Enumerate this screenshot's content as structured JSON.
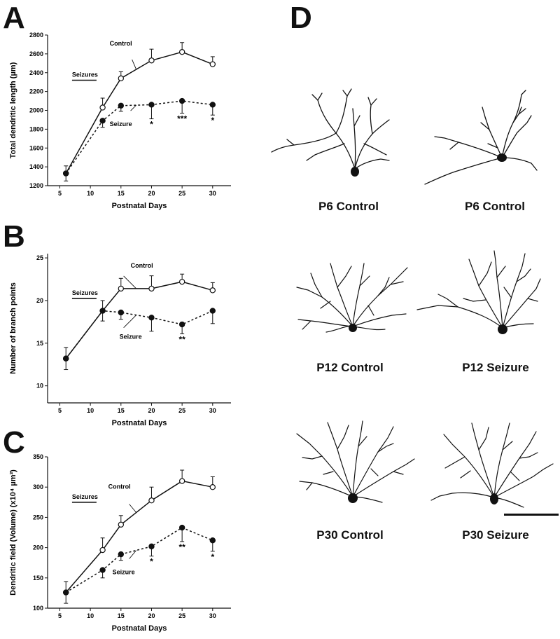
{
  "panels": {
    "a": "A",
    "b": "B",
    "c": "C",
    "d": "D"
  },
  "chart_data": [
    {
      "type": "line",
      "panel": "A",
      "xlabel": "Postnatal Days",
      "ylabel": "Total dendritic length (µm)",
      "x_ticks": [
        5,
        10,
        15,
        20,
        25,
        30
      ],
      "y_ticks": [
        1200,
        1400,
        1600,
        1800,
        2000,
        2200,
        2400,
        2600,
        2800
      ],
      "xlim": [
        3,
        33
      ],
      "ylim": [
        1200,
        2800
      ],
      "seizure_label": "Seizures",
      "seizure_period": [
        7,
        11
      ],
      "series": [
        {
          "name": "Control",
          "line": "solid",
          "marker": "open-circle",
          "x": [
            6,
            12,
            15,
            20,
            25,
            30
          ],
          "y": [
            1330,
            2030,
            2340,
            2530,
            2620,
            2490
          ],
          "err": [
            80,
            100,
            70,
            120,
            100,
            80
          ]
        },
        {
          "name": "Seizure",
          "line": "dashed",
          "marker": "filled-circle",
          "x": [
            6,
            12,
            15,
            20,
            25,
            30
          ],
          "y": [
            1330,
            1890,
            2050,
            2060,
            2100,
            2060
          ],
          "err": [
            80,
            70,
            60,
            150,
            130,
            110
          ]
        }
      ],
      "significance": [
        {
          "x": 20,
          "label": "*"
        },
        {
          "x": 25,
          "label": "***"
        },
        {
          "x": 30,
          "label": "*"
        }
      ]
    },
    {
      "type": "line",
      "panel": "B",
      "xlabel": "Postnatal Days",
      "ylabel": "Number of branch points",
      "x_ticks": [
        5,
        10,
        15,
        20,
        25,
        30
      ],
      "y_ticks": [
        10,
        15,
        20,
        25
      ],
      "xlim": [
        3,
        33
      ],
      "ylim": [
        8,
        25.5
      ],
      "seizure_label": "Seizures",
      "seizure_period": [
        7,
        11
      ],
      "series": [
        {
          "name": "Control",
          "line": "solid",
          "marker": "open-circle",
          "x": [
            6,
            12,
            15,
            20,
            25,
            30
          ],
          "y": [
            13.2,
            18.8,
            21.4,
            21.4,
            22.2,
            21.2
          ],
          "err": [
            1.3,
            1.2,
            1.2,
            1.5,
            0.9,
            0.9
          ]
        },
        {
          "name": "Seizure",
          "line": "dashed",
          "marker": "filled-circle",
          "x": [
            6,
            12,
            15,
            20,
            25,
            30
          ],
          "y": [
            13.2,
            18.8,
            18.6,
            18.0,
            17.2,
            18.8
          ],
          "err": [
            1.3,
            1.2,
            0.8,
            1.6,
            1.1,
            1.5
          ]
        }
      ],
      "significance": [
        {
          "x": 25,
          "label": "**"
        }
      ]
    },
    {
      "type": "line",
      "panel": "C",
      "xlabel": "Postnatal Days",
      "ylabel": "Dendritic field (Volume) (x10⁴ µm³)",
      "x_ticks": [
        5,
        10,
        15,
        20,
        25,
        30
      ],
      "y_ticks": [
        100,
        150,
        200,
        250,
        300,
        350
      ],
      "xlim": [
        3,
        33
      ],
      "ylim": [
        100,
        350
      ],
      "seizure_label": "Seizures",
      "seizure_period": [
        7,
        11
      ],
      "series": [
        {
          "name": "Control",
          "line": "solid",
          "marker": "open-circle",
          "x": [
            6,
            12,
            15,
            20,
            25,
            30
          ],
          "y": [
            126,
            196,
            238,
            278,
            310,
            300
          ],
          "err": [
            18,
            20,
            15,
            22,
            18,
            17
          ]
        },
        {
          "name": "Seizure",
          "line": "dashed",
          "marker": "filled-circle",
          "x": [
            6,
            12,
            15,
            20,
            25,
            30
          ],
          "y": [
            126,
            163,
            189,
            202,
            233,
            212
          ],
          "err": [
            18,
            13,
            10,
            16,
            23,
            18
          ]
        }
      ],
      "significance": [
        {
          "x": 20,
          "label": "*"
        },
        {
          "x": 25,
          "label": "**"
        },
        {
          "x": 30,
          "label": "*"
        }
      ]
    }
  ],
  "neurons": [
    {
      "caption": "P6 Control"
    },
    {
      "caption": "P6 Control"
    },
    {
      "caption": "P12 Control"
    },
    {
      "caption": "P12 Seizure"
    },
    {
      "caption": "P30 Control"
    },
    {
      "caption": "P30 Seizure"
    }
  ]
}
